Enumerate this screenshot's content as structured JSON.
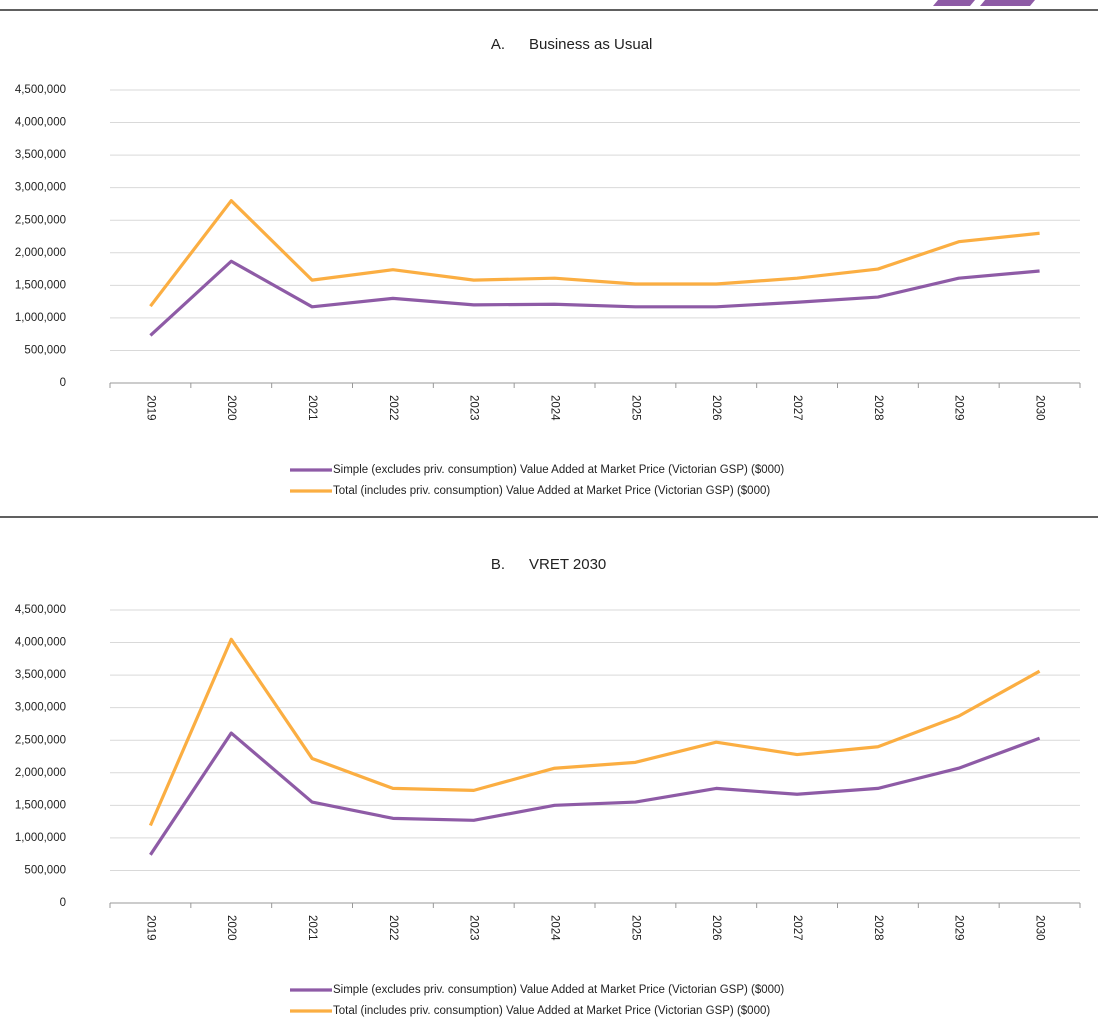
{
  "chart_data": [
    {
      "type": "line",
      "panel": "A.",
      "title": "Business as Usual",
      "categories": [
        "2019",
        "2020",
        "2021",
        "2022",
        "2023",
        "2024",
        "2025",
        "2026",
        "2027",
        "2028",
        "2029",
        "2030"
      ],
      "series": [
        {
          "name": "Simple (excludes priv. consumption) Value Added at Market Price (Victorian GSP) ($000)",
          "color": "#8e5ba6",
          "values": [
            730000,
            1870000,
            1170000,
            1300000,
            1200000,
            1210000,
            1170000,
            1170000,
            1240000,
            1320000,
            1610000,
            1720000
          ]
        },
        {
          "name": "Total (includes priv. consumption) Value Added at Market Price (Victorian GSP) ($000)",
          "color": "#fbae42",
          "values": [
            1180000,
            2800000,
            1580000,
            1740000,
            1580000,
            1610000,
            1520000,
            1520000,
            1610000,
            1750000,
            2170000,
            2300000
          ]
        }
      ],
      "ylim": [
        0,
        4500000
      ],
      "yticks": [
        0,
        {
          "value": 500000,
          "label": "500,000"
        },
        {
          "value": 1000000,
          "label": "1,000,000"
        },
        {
          "value": 1500000,
          "label": "1,500,000"
        },
        {
          "value": 2000000,
          "label": "2,000,000"
        },
        {
          "value": 2500000,
          "label": "2,500,000"
        },
        {
          "value": 3000000,
          "label": "3,000,000"
        },
        {
          "value": 3500000,
          "label": "3,500,000"
        },
        {
          "value": 4000000,
          "label": "4,000,000"
        },
        {
          "value": 4500000,
          "label": "4,500,000"
        }
      ],
      "grid": true,
      "legend": "bottom"
    },
    {
      "type": "line",
      "panel": "B.",
      "title": "VRET 2030",
      "categories": [
        "2019",
        "2020",
        "2021",
        "2022",
        "2023",
        "2024",
        "2025",
        "2026",
        "2027",
        "2028",
        "2029",
        "2030"
      ],
      "series": [
        {
          "name": "Simple (excludes priv. consumption) Value Added at Market Price (Victorian GSP) ($000)",
          "color": "#8e5ba6",
          "values": [
            740000,
            2610000,
            1550000,
            1300000,
            1270000,
            1500000,
            1550000,
            1760000,
            1670000,
            1760000,
            2070000,
            2530000
          ]
        },
        {
          "name": "Total (includes priv. consumption) Value Added at Market Price (Victorian GSP) ($000)",
          "color": "#fbae42",
          "values": [
            1190000,
            4050000,
            2220000,
            1760000,
            1730000,
            2070000,
            2160000,
            2470000,
            2280000,
            2400000,
            2870000,
            3560000
          ]
        }
      ],
      "ylim": [
        0,
        4500000
      ],
      "yticks": [
        0,
        {
          "value": 500000,
          "label": "500,000"
        },
        {
          "value": 1000000,
          "label": "1,000,000"
        },
        {
          "value": 1500000,
          "label": "1,500,000"
        },
        {
          "value": 2000000,
          "label": "2,000,000"
        },
        {
          "value": 2500000,
          "label": "2,500,000"
        },
        {
          "value": 3000000,
          "label": "3,000,000"
        },
        {
          "value": 3500000,
          "label": "3,500,000"
        },
        {
          "value": 4000000,
          "label": "4,000,000"
        },
        {
          "value": 4500000,
          "label": "4,500,000"
        }
      ],
      "grid": true,
      "legend": "bottom"
    }
  ]
}
